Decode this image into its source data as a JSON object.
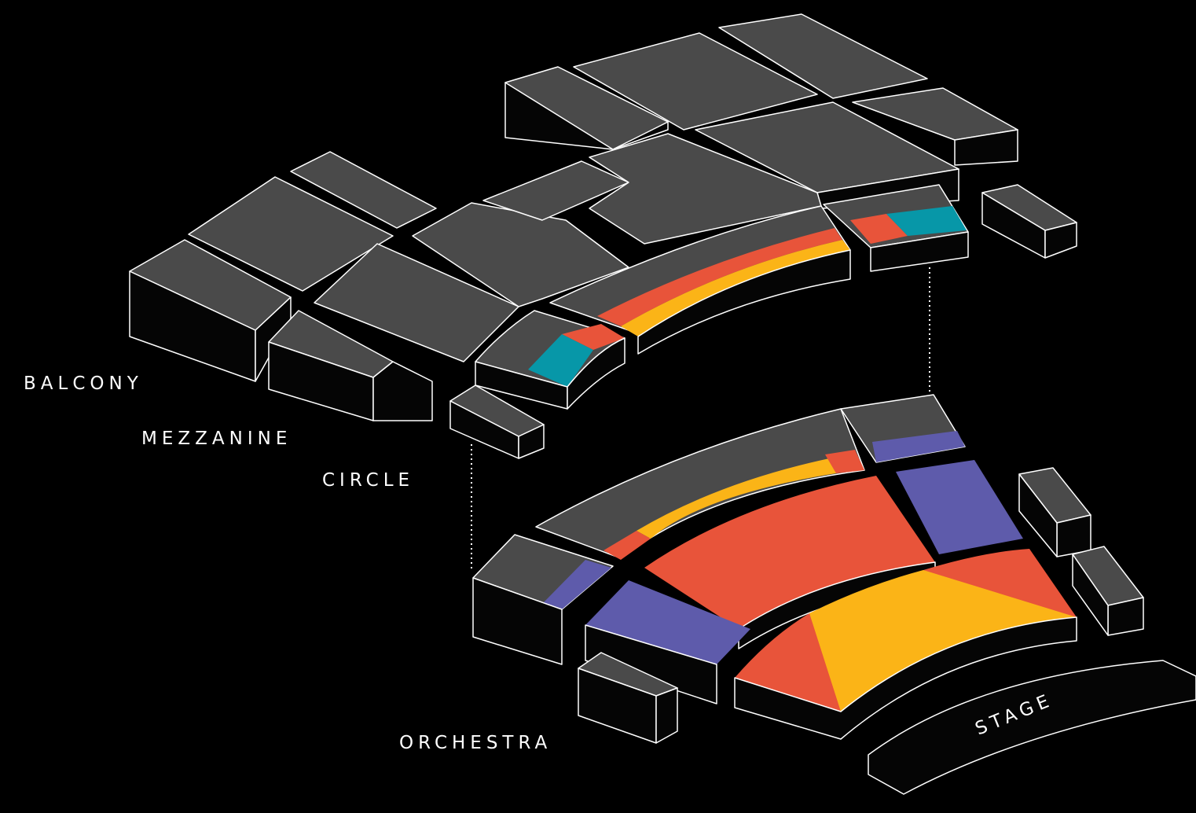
{
  "levels": [
    {
      "label": "BALCONY"
    },
    {
      "label": "MEZZANINE"
    },
    {
      "label": "CIRCLE"
    },
    {
      "label": "ORCHESTRA"
    }
  ],
  "stage": {
    "label": "STAGE"
  }
}
